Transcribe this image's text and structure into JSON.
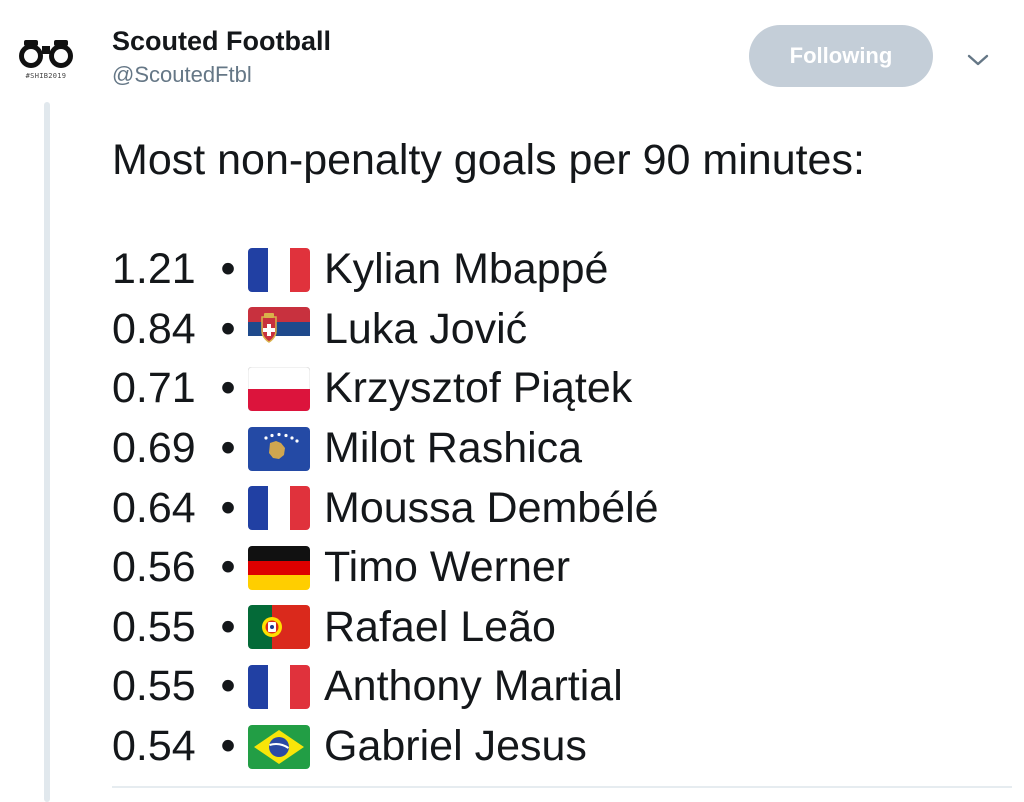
{
  "account": {
    "name": "Scouted Football",
    "handle": "@ScoutedFtbl",
    "avatar_tag": "#SHIB2019"
  },
  "follow_button": {
    "label": "Following"
  },
  "menu": {
    "icon": "chevron-down-icon"
  },
  "tweet": {
    "title": "Most non-penalty goals per 90 minutes:",
    "bullet": "•",
    "rows": [
      {
        "value": "1.21",
        "flag": "france",
        "player": "Kylian Mbappé"
      },
      {
        "value": "0.84",
        "flag": "serbia",
        "player": "Luka Jović"
      },
      {
        "value": "0.71",
        "flag": "poland",
        "player": "Krzysztof Piątek"
      },
      {
        "value": "0.69",
        "flag": "kosovo",
        "player": "Milot Rashica"
      },
      {
        "value": "0.64",
        "flag": "france",
        "player": "Moussa Dembélé"
      },
      {
        "value": "0.56",
        "flag": "germany",
        "player": "Timo Werner"
      },
      {
        "value": "0.55",
        "flag": "portugal",
        "player": "Rafael Leão"
      },
      {
        "value": "0.55",
        "flag": "france",
        "player": "Anthony Martial"
      },
      {
        "value": "0.54",
        "flag": "brazil",
        "player": "Gabriel Jesus"
      }
    ]
  },
  "colors": {
    "button_bg": "#c4ced8",
    "handle": "#657786",
    "thread_line": "#e1e8ed"
  }
}
